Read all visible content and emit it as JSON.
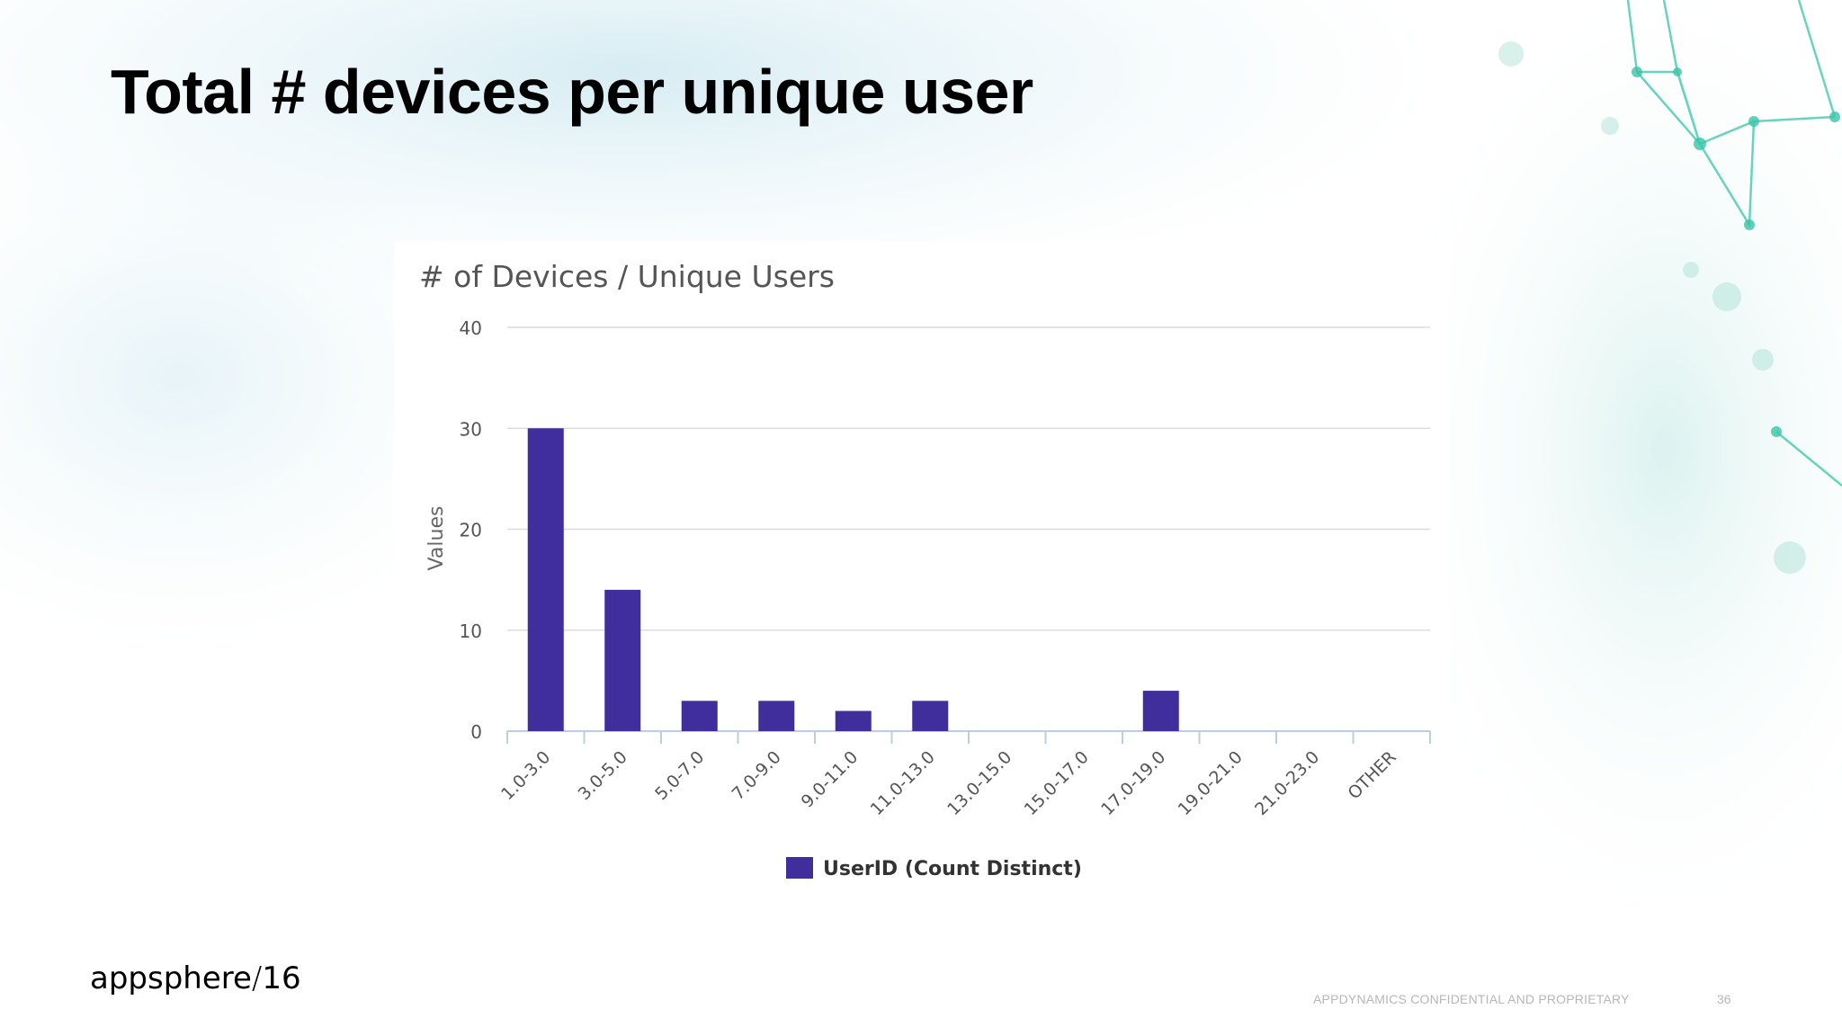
{
  "slide": {
    "title": "Total # devices per unique user",
    "footer_note": "APPDYNAMICS CONFIDENTIAL AND PROPRIETARY",
    "page_number": "36",
    "logo_text": "appsphere",
    "logo_year": "16",
    "accent_color": "#3ac5a8"
  },
  "chart_data": {
    "type": "bar",
    "title": "# of Devices / Unique Users",
    "xlabel": "",
    "ylabel": "Values",
    "ylim": [
      0,
      40
    ],
    "yticks": [
      0,
      10,
      20,
      30,
      40
    ],
    "grid": true,
    "legend_position": "bottom",
    "categories": [
      "1.0-3.0",
      "3.0-5.0",
      "5.0-7.0",
      "7.0-9.0",
      "9.0-11.0",
      "11.0-13.0",
      "13.0-15.0",
      "15.0-17.0",
      "17.0-19.0",
      "19.0-21.0",
      "21.0-23.0",
      "OTHER"
    ],
    "series": [
      {
        "name": "UserID (Count Distinct)",
        "values": [
          30,
          14,
          3,
          3,
          2,
          3,
          0,
          0,
          4,
          0,
          0,
          0
        ],
        "color": "#3f2e9c"
      }
    ]
  }
}
